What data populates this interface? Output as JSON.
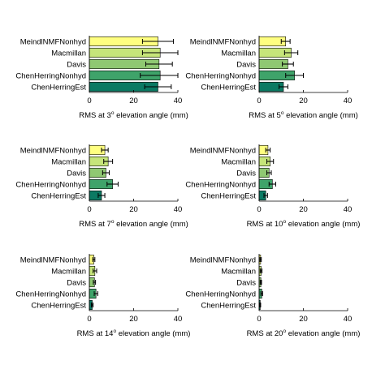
{
  "chart_data": [
    {
      "type": "bar",
      "orientation": "horizontal",
      "categories": [
        "MeindlNMFNonhyd",
        "Macmillan",
        "Davis",
        "ChenHerringNonhyd",
        "ChenHerringEst"
      ],
      "values": [
        31,
        32,
        31.5,
        32,
        31
      ],
      "errors": [
        7,
        8,
        6,
        9,
        6
      ],
      "xlabel_pre": "RMS at 3",
      "xlabel_sup": "o",
      "xlabel_post": " elevation angle (mm)",
      "xlim": [
        0,
        40
      ],
      "xticks": [
        "0",
        "20",
        "40"
      ]
    },
    {
      "type": "bar",
      "orientation": "horizontal",
      "categories": [
        "MeindlNMFNonhyd",
        "Macmillan",
        "Davis",
        "ChenHerringNonhyd",
        "ChenHerringEst"
      ],
      "values": [
        12,
        14.5,
        13,
        16,
        11
      ],
      "errors": [
        2,
        3,
        2.5,
        4,
        2
      ],
      "xlabel_pre": "RMS at 5",
      "xlabel_sup": "o",
      "xlabel_post": " elevation angle (mm)",
      "xlim": [
        0,
        40
      ],
      "xticks": [
        "0",
        "20",
        "40"
      ]
    },
    {
      "type": "bar",
      "orientation": "horizontal",
      "categories": [
        "MeindlNMFNonhyd",
        "Macmillan",
        "Davis",
        "ChenHerringNonhyd",
        "ChenHerringEst"
      ],
      "values": [
        7,
        8.5,
        7.5,
        10.5,
        5.5
      ],
      "errors": [
        1.5,
        2,
        1.5,
        2.5,
        1.5
      ],
      "xlabel_pre": "RMS at 7",
      "xlabel_sup": "o",
      "xlabel_post": " elevation angle (mm)",
      "xlim": [
        0,
        40
      ],
      "xticks": [
        "0",
        "20",
        "40"
      ]
    },
    {
      "type": "bar",
      "orientation": "horizontal",
      "categories": [
        "MeindlNMFNonhyd",
        "Macmillan",
        "Davis",
        "ChenHerringNonhyd",
        "ChenHerringEst"
      ],
      "values": [
        4,
        5,
        4.5,
        6,
        3
      ],
      "errors": [
        1,
        1.5,
        1,
        1.5,
        0.8
      ],
      "xlabel_pre": "RMS at 10",
      "xlabel_sup": "o",
      "xlabel_post": " elevation angle (mm)",
      "xlim": [
        0,
        40
      ],
      "xticks": [
        "0",
        "20",
        "40"
      ]
    },
    {
      "type": "bar",
      "orientation": "horizontal",
      "categories": [
        "MeindlNMFNonhyd",
        "Macmillan",
        "Davis",
        "ChenHerringNonhyd",
        "ChenHerringEst"
      ],
      "values": [
        2,
        2.5,
        2.3,
        3,
        1.3
      ],
      "errors": [
        0.5,
        0.8,
        0.5,
        0.8,
        0.4
      ],
      "xlabel_pre": "RMS at 14",
      "xlabel_sup": "o",
      "xlabel_post": " elevation angle (mm)",
      "xlim": [
        0,
        40
      ],
      "xticks": [
        "0",
        "20",
        "40"
      ]
    },
    {
      "type": "bar",
      "orientation": "horizontal",
      "categories": [
        "MeindlNMFNonhyd",
        "Macmillan",
        "Davis",
        "ChenHerringNonhyd",
        "ChenHerringEst"
      ],
      "values": [
        0.7,
        0.9,
        0.8,
        1.2,
        0.5
      ],
      "errors": [
        0.3,
        0.4,
        0.3,
        0.4,
        0.2
      ],
      "xlabel_pre": "RMS at 20",
      "xlabel_sup": "o",
      "xlabel_post": " elevation angle (mm)",
      "xlim": [
        0,
        40
      ],
      "xticks": [
        "0",
        "20",
        "40"
      ]
    }
  ],
  "colors": {
    "bars": [
      "#ffff80",
      "#c6e57a",
      "#8fc872",
      "#3fa36a",
      "#0b7a63"
    ],
    "edge": "#000000",
    "errorbar": "#000000"
  }
}
